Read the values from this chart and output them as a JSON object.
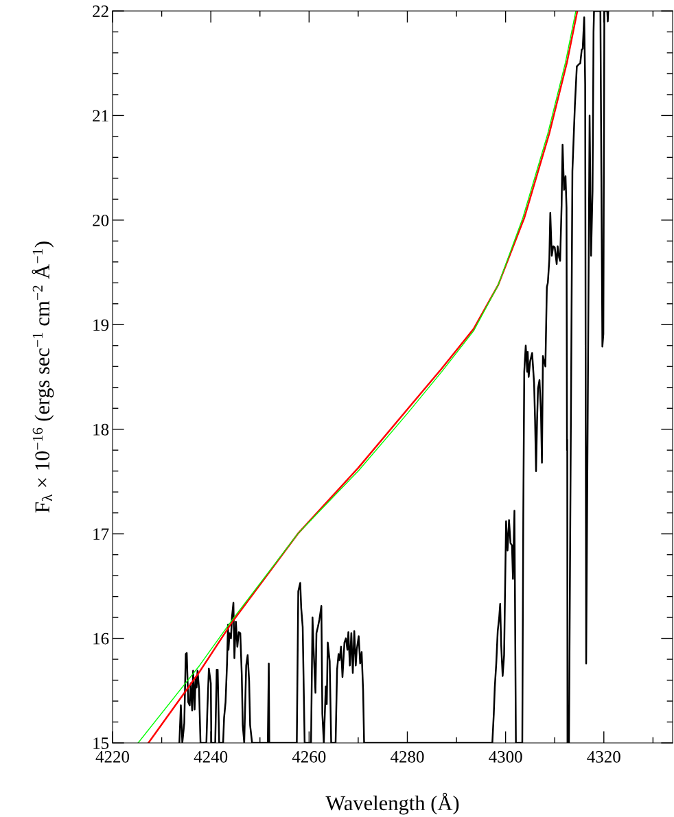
{
  "chart_data": {
    "type": "line",
    "xlabel": "Wavelength (Å)",
    "ylabel": "F$_{λ}$ × 10$^{−16}$ (ergs sec$^{−1}$ cm$^{−2}$ Å$^{−1}$)",
    "xlim": [
      4220,
      4334
    ],
    "ylim": [
      15,
      22
    ],
    "xticks": [
      4220,
      {
        "value": 4230,
        "label": null
      },
      4240,
      {
        "value": 4250,
        "label": null
      },
      4260,
      {
        "value": 4270,
        "label": null
      },
      4280,
      {
        "value": 4290,
        "label": null
      },
      4300,
      {
        "value": 4310,
        "label": null
      },
      4320,
      {
        "value": 4330,
        "label": null
      }
    ],
    "yticks": [
      15,
      {
        "value": 15.2,
        "label": null
      },
      {
        "value": 15.4,
        "label": null
      },
      {
        "value": 15.6,
        "label": null
      },
      {
        "value": 15.8,
        "label": null
      },
      16,
      {
        "value": 16.2,
        "label": null
      },
      {
        "value": 16.4,
        "label": null
      },
      {
        "value": 16.6,
        "label": null
      },
      {
        "value": 16.8,
        "label": null
      },
      17,
      {
        "value": 17.2,
        "label": null
      },
      {
        "value": 17.4,
        "label": null
      },
      {
        "value": 17.6,
        "label": null
      },
      {
        "value": 17.8,
        "label": null
      },
      18,
      {
        "value": 18.2,
        "label": null
      },
      {
        "value": 18.4,
        "label": null
      },
      {
        "value": 18.6,
        "label": null
      },
      {
        "value": 18.8,
        "label": null
      },
      19,
      {
        "value": 19.2,
        "label": null
      },
      {
        "value": 19.4,
        "label": null
      },
      {
        "value": 19.6,
        "label": null
      },
      {
        "value": 19.8,
        "label": null
      },
      20,
      {
        "value": 20.2,
        "label": null
      },
      {
        "value": 20.4,
        "label": null
      },
      {
        "value": 20.6,
        "label": null
      },
      {
        "value": 20.8,
        "label": null
      },
      21,
      {
        "value": 21.2,
        "label": null
      },
      {
        "value": 21.4,
        "label": null
      },
      {
        "value": 21.6,
        "label": null
      },
      {
        "value": 21.8,
        "label": null
      },
      22
    ],
    "grid": false,
    "legend": false,
    "line_style": "solid",
    "marker": "none",
    "series": [
      {
        "color": "#000000",
        "x": [
          4233.6,
          4233.9,
          4234.2,
          4234.6,
          4234.9,
          4235.1,
          4235.4,
          4235.7,
          4235.9,
          4236.2,
          4236.4,
          4236.7,
          4236.9,
          4237.1,
          4237.3,
          4237.6,
          4237.9,
          4239.1,
          4239.3,
          4239.6,
          4240.0,
          4240.1,
          4240.9,
          4241.2,
          4241.4,
          4241.7,
          4242.5,
          4242.7,
          4243.0,
          4243.3,
          4243.5,
          4243.6,
          4243.8,
          4244.1,
          4244.3,
          4244.6,
          4244.8,
          4245.1,
          4245.4,
          4245.7,
          4246.0,
          4246.3,
          4246.5,
          4246.8,
          4247.2,
          4247.5,
          4247.8,
          4248.0,
          4248.4,
          4251.6,
          4251.8,
          4251.9,
          4257.5,
          4257.8,
          4258.2,
          4258.4,
          4258.7,
          4259.1,
          4260.4,
          4260.7,
          4260.9,
          4261.3,
          4261.5,
          4261.8,
          4262.1,
          4262.5,
          4262.7,
          4263.0,
          4263.4,
          4263.6,
          4263.8,
          4264.2,
          4264.5,
          4265.4,
          4265.7,
          4266.0,
          4266.2,
          4266.5,
          4266.8,
          4267.2,
          4267.5,
          4267.8,
          4268.0,
          4268.3,
          4268.6,
          4268.9,
          4269.2,
          4269.5,
          4269.7,
          4270.1,
          4270.4,
          4270.7,
          4271.0,
          4271.2,
          4297.3,
          4297.6,
          4297.8,
          4298.1,
          4298.4,
          4298.7,
          4298.9,
          4299.1,
          4299.4,
          4299.7,
          4300.1,
          4300.4,
          4300.7,
          4301.0,
          4301.3,
          4301.5,
          4301.8,
          4302.1,
          4303.4,
          4303.6,
          4303.8,
          4304.1,
          4304.4,
          4304.5,
          4304.7,
          4305.0,
          4305.4,
          4305.8,
          4306.0,
          4306.2,
          4306.4,
          4306.6,
          4306.9,
          4307.2,
          4307.4,
          4307.6,
          4308.1,
          4308.4,
          4308.6,
          4308.9,
          4309.1,
          4309.4,
          4309.7,
          4310.0,
          4310.4,
          4310.6,
          4310.9,
          4311.1,
          4311.4,
          4311.6,
          4311.9,
          4312.2,
          4312.4,
          4312.5,
          4312.55,
          4312.6,
          4312.9,
          4313.6,
          4314.1,
          4314.5,
          4314.9,
          4315.2,
          4315.5,
          4315.7,
          4316.0,
          4316.2,
          4316.4,
          4317.1,
          4317.4,
          4317.7,
          4317.9,
          4318.0,
          4319.3,
          4319.7,
          4319.9,
          4320.1,
          4320.7,
          4320.8,
          4320.9
        ],
        "values": [
          15.0,
          15.36,
          15.0,
          15.19,
          15.85,
          15.86,
          15.39,
          15.36,
          15.57,
          15.31,
          15.69,
          15.32,
          15.61,
          15.53,
          15.69,
          15.52,
          15.0,
          15.0,
          15.32,
          15.71,
          15.57,
          15.0,
          15.0,
          15.7,
          15.7,
          15.0,
          15.0,
          15.24,
          15.39,
          15.76,
          16.13,
          15.89,
          16.05,
          16.0,
          16.2,
          16.34,
          15.81,
          16.16,
          15.92,
          16.06,
          16.05,
          15.65,
          15.17,
          15.0,
          15.74,
          15.84,
          15.59,
          15.17,
          15.0,
          15.0,
          15.76,
          15.0,
          15.0,
          16.45,
          16.53,
          16.29,
          16.11,
          15.0,
          15.0,
          16.2,
          15.92,
          15.48,
          16.05,
          16.11,
          16.18,
          16.31,
          15.28,
          15.0,
          15.54,
          15.37,
          15.96,
          15.78,
          15.0,
          15.0,
          15.7,
          15.85,
          15.79,
          15.92,
          15.63,
          15.96,
          16.0,
          15.89,
          16.06,
          15.74,
          16.05,
          15.67,
          16.07,
          15.74,
          15.89,
          16.02,
          15.76,
          15.87,
          15.5,
          15.0,
          15.0,
          15.28,
          15.53,
          15.76,
          16.07,
          16.2,
          16.33,
          15.94,
          15.64,
          15.84,
          17.12,
          16.84,
          17.13,
          16.91,
          16.89,
          16.57,
          17.22,
          15.0,
          15.0,
          17.17,
          18.55,
          18.8,
          18.55,
          18.74,
          18.5,
          18.65,
          18.73,
          18.44,
          18.09,
          17.6,
          18.07,
          18.39,
          18.47,
          18.16,
          17.68,
          18.7,
          18.6,
          19.36,
          19.4,
          19.62,
          20.07,
          19.66,
          19.75,
          19.74,
          19.58,
          19.75,
          19.64,
          19.61,
          20.14,
          20.72,
          20.29,
          20.42,
          20.12,
          17.8,
          17.9,
          15.0,
          15.0,
          20.47,
          21.09,
          21.47,
          21.49,
          21.5,
          21.63,
          21.64,
          21.94,
          21.3,
          15.76,
          21.0,
          19.66,
          20.28,
          21.8,
          22.0,
          22.0,
          18.79,
          18.91,
          22.0,
          22.0,
          21.9,
          22.0
        ]
      },
      {
        "color": "#ff0000",
        "x": [
          4227.3,
          4237.7,
          4244.4,
          4257.7,
          4270,
          4280,
          4287,
          4293.5,
          4298.5,
          4303.8,
          4308.9,
          4312.5,
          4314.6
        ],
        "values": [
          15.0,
          15.68,
          16.16,
          17.0,
          17.63,
          18.19,
          18.58,
          18.96,
          19.38,
          20.02,
          20.83,
          21.51,
          22.0
        ]
      },
      {
        "color": "#00ff00",
        "x": [
          4225.2,
          4237.7,
          4244.4,
          4257.7,
          4270,
          4280,
          4287,
          4293.5,
          4298.5,
          4303.5,
          4308.6,
          4312.2,
          4314.3
        ],
        "values": [
          15.0,
          15.74,
          16.18,
          17.0,
          17.6,
          18.15,
          18.55,
          18.94,
          19.38,
          20.02,
          20.83,
          21.51,
          22.0
        ]
      }
    ]
  }
}
